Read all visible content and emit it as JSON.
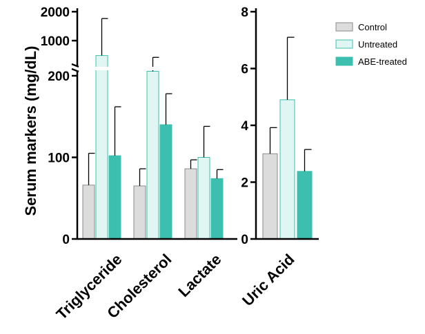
{
  "chart_data": [
    {
      "type": "bar",
      "panel": "left",
      "ylabel": "Serum markers (mg/dL)",
      "categories": [
        "Triglyceride",
        "Cholesterol",
        "Lactate"
      ],
      "y_scale": "broken",
      "y_lower_range": [
        0,
        200
      ],
      "y_upper_range": [
        100,
        2000
      ],
      "y_upper_scale": "log",
      "y_ticks": [
        0,
        100,
        200,
        1000,
        2000
      ],
      "y_tick_labels": [
        "0",
        "100",
        "200",
        "1000",
        "2000"
      ],
      "series": [
        {
          "name": "Control",
          "values": [
            66,
            65,
            86
          ],
          "error": [
            39,
            21,
            11
          ]
        },
        {
          "name": "Untreated",
          "values": [
            700,
            480,
            100
          ],
          "error": [
            1000,
            190,
            38
          ]
        },
        {
          "name": "ABE-treated",
          "values": [
            102,
            140,
            74
          ],
          "error": [
            60,
            38,
            11
          ]
        }
      ]
    },
    {
      "type": "bar",
      "panel": "right",
      "categories": [
        "Uric Acid"
      ],
      "ylim": [
        0,
        8
      ],
      "y_ticks": [
        0,
        2,
        4,
        6,
        8
      ],
      "y_tick_labels": [
        "0",
        "2",
        "4",
        "6",
        "8"
      ],
      "series": [
        {
          "name": "Control",
          "values": [
            3.0
          ],
          "error": [
            0.92
          ]
        },
        {
          "name": "Untreated",
          "values": [
            4.9
          ],
          "error": [
            2.2
          ]
        },
        {
          "name": "ABE-treated",
          "values": [
            2.38
          ],
          "error": [
            0.77
          ]
        }
      ]
    }
  ],
  "legend": {
    "placement": "top-right",
    "entries": [
      {
        "label": "Control",
        "fill": "#dcdcdc",
        "stroke": "#8a8a8a"
      },
      {
        "label": "Untreated",
        "fill": "#dff6f2",
        "stroke": "#3cbfae"
      },
      {
        "label": "ABE-treated",
        "fill": "#3cbfae",
        "stroke": "#3cbfae"
      }
    ]
  }
}
